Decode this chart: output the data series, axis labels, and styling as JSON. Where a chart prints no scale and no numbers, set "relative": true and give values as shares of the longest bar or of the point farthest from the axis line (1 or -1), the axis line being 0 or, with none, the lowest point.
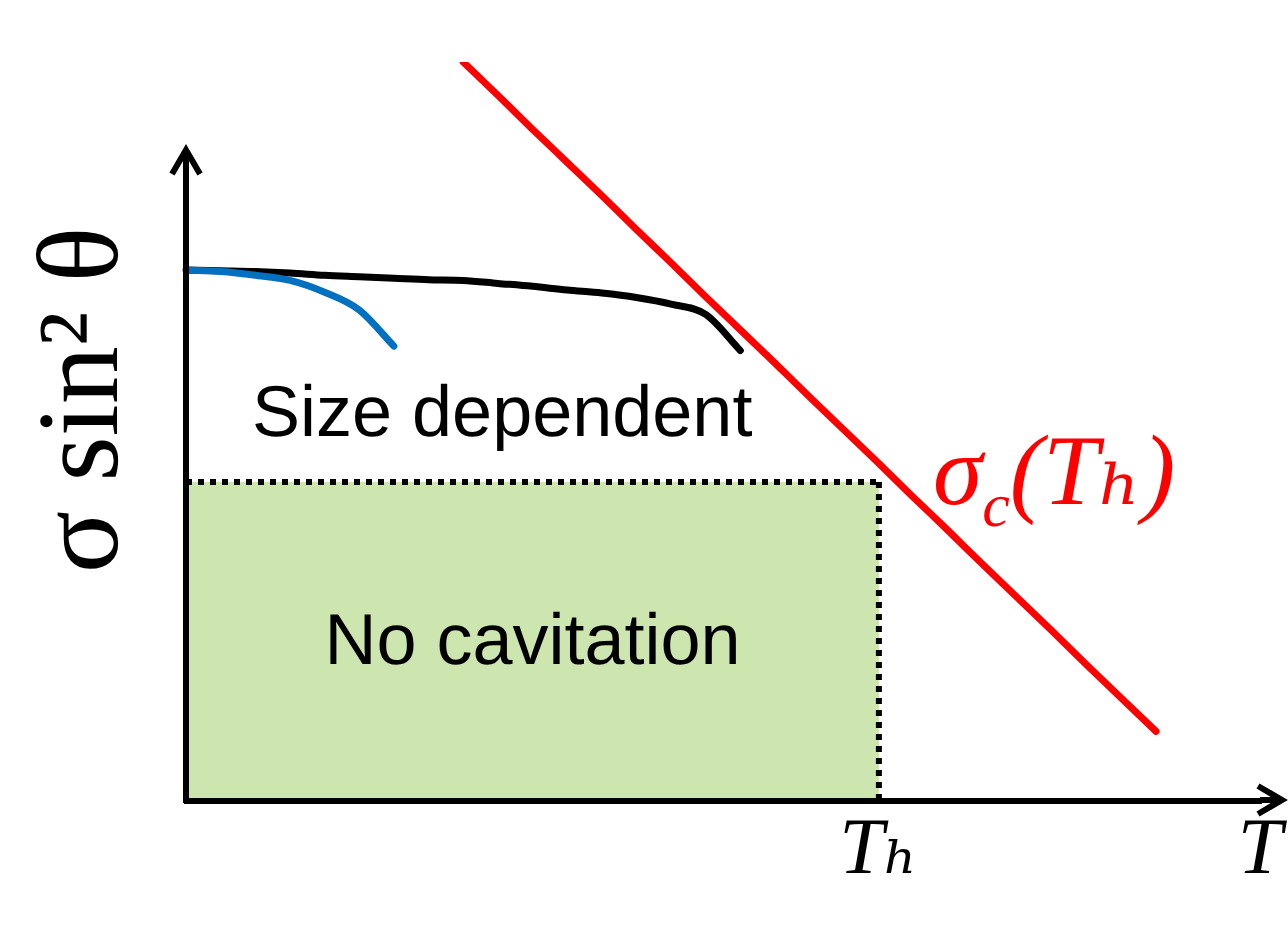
{
  "chart_data": {
    "type": "line",
    "relative": true,
    "ylabel": "σ sin² θ",
    "categories": [
      null,
      null,
      null,
      null,
      null,
      null,
      null,
      null,
      null,
      null,
      null,
      null,
      null,
      null,
      null,
      null,
      null,
      null,
      null,
      null,
      "Tₕ",
      null,
      null,
      null,
      null,
      null,
      null,
      null,
      null,
      null,
      null,
      "T"
    ],
    "series": [
      {
        "type": "area",
        "name": "No cavitation",
        "color": "#cde5ae",
        "line_style": "dotted",
        "values": [
          0.431,
          0.431,
          0.431,
          0.431,
          0.431,
          0.431,
          0.431,
          0.431,
          0.431,
          0.431,
          0.431,
          0.431,
          0.431,
          0.431,
          0.431,
          0.431,
          0.431,
          0.431,
          0.431,
          0.431,
          0.431,
          null,
          null,
          null,
          null,
          null,
          null,
          null,
          null,
          null,
          null,
          null
        ]
      },
      {
        "color": "#000000",
        "values": [
          0.718,
          0.717,
          0.716,
          0.714,
          0.711,
          0.709,
          0.707,
          0.705,
          0.704,
          0.7,
          0.696,
          0.691,
          0.687,
          0.681,
          0.672,
          0.658,
          0.609,
          null,
          null,
          null,
          null,
          null,
          null,
          null,
          null,
          null,
          null,
          null,
          null,
          null,
          null,
          null
        ]
      },
      {
        "color": "#0070c0",
        "values": [
          0.718,
          0.716,
          0.711,
          0.704,
          0.688,
          0.664,
          0.615,
          null,
          null,
          null,
          null,
          null,
          null,
          null,
          null,
          null,
          null,
          null,
          null,
          null,
          null,
          null,
          null,
          null,
          null,
          null,
          null,
          null,
          null,
          null,
          null,
          null
        ]
      },
      {
        "name": "σ$_{c}$(Tₕ)",
        "color": "#ff0000",
        "values": [
          null,
          null,
          null,
          null,
          null,
          null,
          null,
          null,
          1.0,
          0.955,
          0.909,
          0.864,
          0.819,
          0.773,
          0.728,
          0.682,
          0.637,
          0.592,
          0.546,
          0.501,
          0.456,
          0.41,
          0.365,
          0.319,
          0.274,
          0.229,
          0.183,
          0.138,
          0.093,
          null,
          null,
          null
        ]
      }
    ],
    "annotations": [
      "Size dependent"
    ],
    "legend": false,
    "grid": false,
    "marker": "none",
    "tick_labels": "x",
    "line_style": "solid"
  }
}
